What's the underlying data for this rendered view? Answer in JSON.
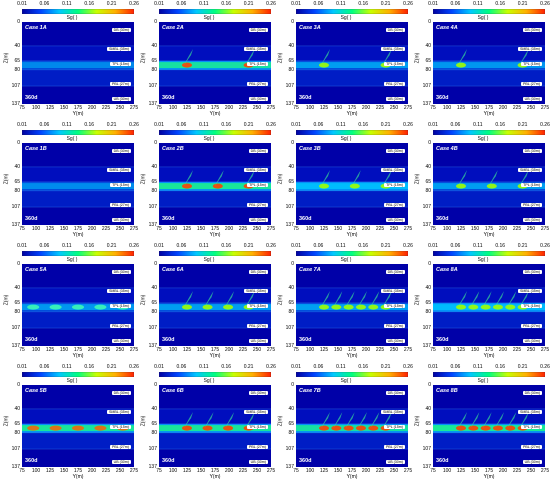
{
  "colorbar": {
    "label": "Sg( )",
    "ticks": [
      "0.01",
      "0.06",
      "0.11",
      "0.16",
      "0.21",
      "0.26"
    ],
    "stops": [
      "#0000a0",
      "#0044ff",
      "#00c8ff",
      "#00ff80",
      "#c8ff00",
      "#ffb000",
      "#ff2000"
    ]
  },
  "axes": {
    "xlabel": "Y(m)",
    "ylabel": "Z(m)",
    "x_ticks": [
      "75",
      "100",
      "125",
      "150",
      "175",
      "200",
      "225",
      "250",
      "275"
    ],
    "y_ticks": [
      "0",
      "40",
      "65",
      "80",
      "107",
      "137"
    ]
  },
  "day_label": "360d",
  "layer_labels": [
    "DB (30m)",
    "SMBL (35m)",
    "TPL (15m)",
    "PBL (27m)",
    "UB (30m)"
  ],
  "chart_data": [
    {
      "type": "heatmap",
      "title": "Case 1A",
      "plume": "none",
      "intensity": 0.25,
      "spikes": 0
    },
    {
      "type": "heatmap",
      "title": "Case 2A",
      "plume": "lower",
      "intensity": 0.75,
      "spikes": 2
    },
    {
      "type": "heatmap",
      "title": "Case 3A",
      "plume": "lower",
      "intensity": 0.55,
      "spikes": 2
    },
    {
      "type": "heatmap",
      "title": "Case 4A",
      "plume": "lower",
      "intensity": 0.45,
      "spikes": 2
    },
    {
      "type": "heatmap",
      "title": "Case 1B",
      "plume": "none",
      "intensity": 0.3,
      "spikes": 0
    },
    {
      "type": "heatmap",
      "title": "Case 2B",
      "plume": "lower",
      "intensity": 0.85,
      "spikes": 3
    },
    {
      "type": "heatmap",
      "title": "Case 3B",
      "plume": "lower",
      "intensity": 0.7,
      "spikes": 3
    },
    {
      "type": "heatmap",
      "title": "Case 4B",
      "plume": "lower",
      "intensity": 0.55,
      "spikes": 3
    },
    {
      "type": "heatmap",
      "title": "Case 5A",
      "plume": "none",
      "intensity": 0.45,
      "spikes": 0
    },
    {
      "type": "heatmap",
      "title": "Case 6A",
      "plume": "upper",
      "intensity": 0.55,
      "spikes": 4
    },
    {
      "type": "heatmap",
      "title": "Case 7A",
      "plume": "upper",
      "intensity": 0.6,
      "spikes": 6
    },
    {
      "type": "heatmap",
      "title": "Case 8A",
      "plume": "upper",
      "intensity": 0.65,
      "spikes": 6
    },
    {
      "type": "heatmap",
      "title": "Case 5B",
      "plume": "none",
      "intensity": 0.85,
      "spikes": 0
    },
    {
      "type": "heatmap",
      "title": "Case 6B",
      "plume": "upper",
      "intensity": 0.85,
      "spikes": 4
    },
    {
      "type": "heatmap",
      "title": "Case 7B",
      "plume": "upper",
      "intensity": 0.75,
      "spikes": 6
    },
    {
      "type": "heatmap",
      "title": "Case 8B",
      "plume": "upper",
      "intensity": 0.9,
      "spikes": 6
    }
  ]
}
